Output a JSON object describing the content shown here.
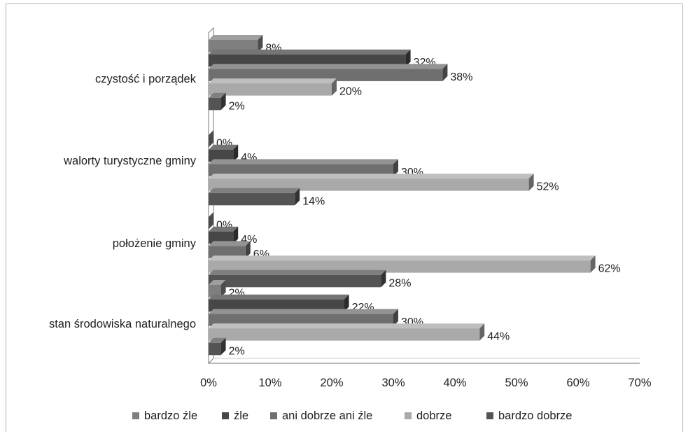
{
  "chart_data": {
    "type": "bar",
    "orientation": "horizontal",
    "style": "3d",
    "categories": [
      "czystość i porządek",
      "walorty turystyczne gminy",
      "położenie gminy",
      "stan środowiska naturalnego"
    ],
    "series": [
      {
        "name": "bardzo źle",
        "color": "#7f7f7f",
        "values": [
          8,
          0,
          0,
          2
        ],
        "labels": [
          "8%",
          "0%",
          "0%",
          "2%"
        ]
      },
      {
        "name": "źle",
        "color": "#474747",
        "values": [
          32,
          4,
          4,
          22
        ],
        "labels": [
          "32%",
          "4%",
          "4%",
          "22%"
        ]
      },
      {
        "name": "ani dobrze ani źle",
        "color": "#6f6f6f",
        "values": [
          38,
          30,
          6,
          30
        ],
        "labels": [
          "38%",
          "30%",
          "6%",
          "30%"
        ]
      },
      {
        "name": "dobrze",
        "color": "#a9a9a9",
        "values": [
          20,
          52,
          62,
          44
        ],
        "labels": [
          "20%",
          "52%",
          "62%",
          "44%"
        ]
      },
      {
        "name": "bardzo dobrze",
        "color": "#545454",
        "values": [
          2,
          14,
          28,
          2
        ],
        "labels": [
          "2%",
          "14%",
          "28%",
          "2%"
        ]
      }
    ],
    "xticks": [
      "0%",
      "10%",
      "20%",
      "30%",
      "40%",
      "50%",
      "60%",
      "70%"
    ],
    "xlim": [
      0,
      70
    ],
    "grid": false,
    "legend_position": "bottom"
  }
}
